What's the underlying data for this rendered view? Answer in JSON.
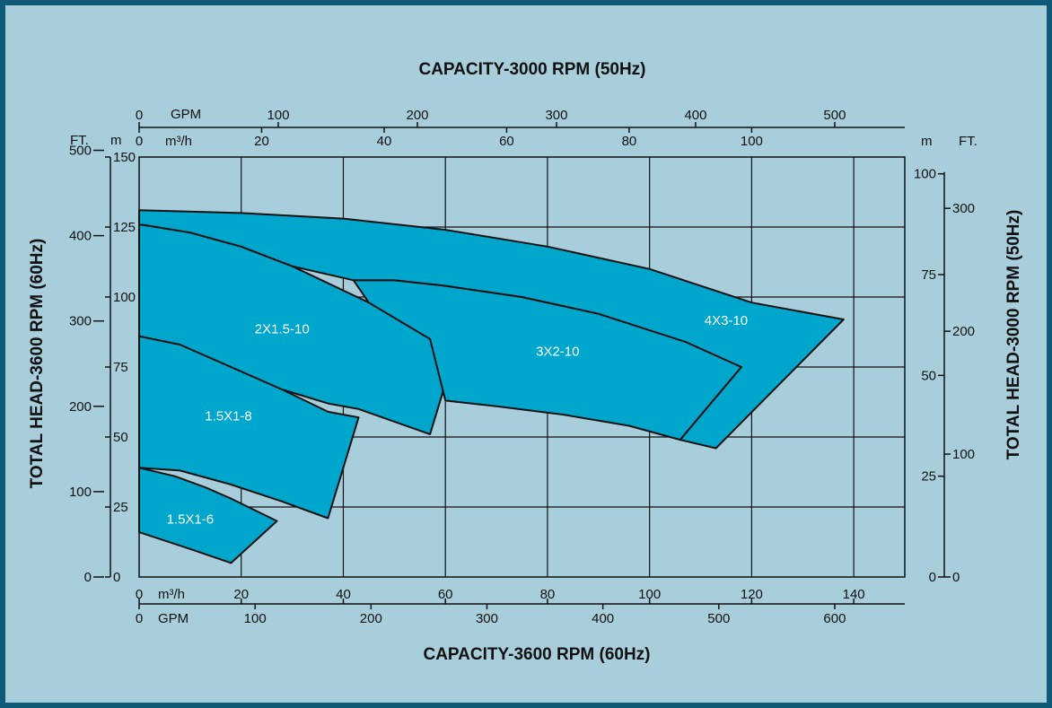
{
  "chart_data": {
    "type": "area",
    "title_top": "CAPACITY-3000 RPM (50Hz)",
    "title_bottom": "CAPACITY-3600 RPM (60Hz)",
    "ylabel_left": "TOTAL HEAD-3600 RPM (60Hz)",
    "ylabel_right": "TOTAL HEAD-3000 RPM (50Hz)",
    "axes": {
      "bottom_m3h": {
        "unit": "m³/h",
        "ticks": [
          0,
          20,
          40,
          60,
          80,
          100,
          120,
          140
        ],
        "range": [
          0,
          150
        ]
      },
      "bottom_gpm": {
        "unit": "GPM",
        "ticks": [
          0,
          100,
          200,
          300,
          400,
          500,
          600
        ]
      },
      "top_m3h": {
        "unit": "m³/h",
        "ticks": [
          0,
          20,
          40,
          60,
          80,
          100
        ]
      },
      "top_gpm": {
        "unit": "GPM",
        "ticks": [
          0,
          100,
          200,
          300,
          400,
          500
        ]
      },
      "left_m": {
        "unit": "m",
        "ticks": [
          0,
          25,
          50,
          75,
          100,
          125,
          150
        ],
        "range": [
          0,
          150
        ]
      },
      "left_ft": {
        "unit": "FT.",
        "ticks": [
          0,
          100,
          200,
          300,
          400,
          500
        ]
      },
      "right_m": {
        "unit": "m",
        "ticks": [
          0,
          25,
          50,
          75,
          100
        ]
      },
      "right_ft": {
        "unit": "FT.",
        "ticks": [
          0,
          100,
          200,
          300
        ]
      }
    },
    "grid": true,
    "regions": [
      {
        "name": "1.5X1-6",
        "outline_60hz_m3h_m": [
          [
            0,
            39
          ],
          [
            7,
            36
          ],
          [
            13,
            32
          ],
          [
            18,
            28
          ],
          [
            27,
            20
          ],
          [
            18,
            5
          ],
          [
            10,
            10
          ],
          [
            0,
            16
          ]
        ]
      },
      {
        "name": "1.5X1-8",
        "outline_60hz_m3h_m": [
          [
            0,
            86
          ],
          [
            8,
            83
          ],
          [
            18,
            75
          ],
          [
            28,
            67
          ],
          [
            37,
            59
          ],
          [
            43,
            57
          ],
          [
            37,
            21
          ],
          [
            28,
            27
          ],
          [
            18,
            33
          ],
          [
            8,
            38
          ],
          [
            0,
            39
          ]
        ]
      },
      {
        "name": "2X1.5-10",
        "outline_60hz_m3h_m": [
          [
            0,
            126
          ],
          [
            10,
            123
          ],
          [
            20,
            118
          ],
          [
            30,
            111
          ],
          [
            45,
            98
          ],
          [
            57,
            85
          ],
          [
            63,
            87
          ],
          [
            57,
            51
          ],
          [
            43,
            60
          ],
          [
            37,
            62
          ],
          [
            28,
            67
          ],
          [
            18,
            75
          ],
          [
            8,
            83
          ],
          [
            0,
            86
          ]
        ]
      },
      {
        "name": "3X2-10",
        "outline_60hz_m3h_m": [
          [
            42,
            106
          ],
          [
            50,
            106
          ],
          [
            60,
            104
          ],
          [
            75,
            100
          ],
          [
            90,
            94
          ],
          [
            107,
            84
          ],
          [
            118,
            75
          ],
          [
            106,
            49
          ],
          [
            96,
            54
          ],
          [
            83,
            58
          ],
          [
            70,
            61
          ],
          [
            60,
            63
          ],
          [
            57,
            85
          ],
          [
            45,
            98
          ]
        ]
      },
      {
        "name": "4X3-10",
        "outline_60hz_m3h_m": [
          [
            0,
            131
          ],
          [
            20,
            130
          ],
          [
            40,
            128
          ],
          [
            60,
            124
          ],
          [
            80,
            118
          ],
          [
            100,
            110
          ],
          [
            120,
            98
          ],
          [
            138,
            92
          ],
          [
            113,
            46
          ],
          [
            106,
            49
          ],
          [
            118,
            75
          ],
          [
            107,
            84
          ],
          [
            90,
            94
          ],
          [
            75,
            100
          ],
          [
            60,
            104
          ],
          [
            50,
            106
          ],
          [
            42,
            106
          ],
          [
            30,
            111
          ],
          [
            20,
            118
          ],
          [
            10,
            123
          ],
          [
            0,
            126
          ]
        ]
      }
    ],
    "region_labels": [
      {
        "text": "1.5X1-6",
        "x": 10,
        "y": 19
      },
      {
        "text": "1.5X1-8",
        "x": 17.5,
        "y": 56
      },
      {
        "text": "2X1.5-10",
        "x": 28,
        "y": 87
      },
      {
        "text": "3X2-10",
        "x": 82,
        "y": 79
      },
      {
        "text": "4X3-10",
        "x": 115,
        "y": 90
      }
    ]
  }
}
